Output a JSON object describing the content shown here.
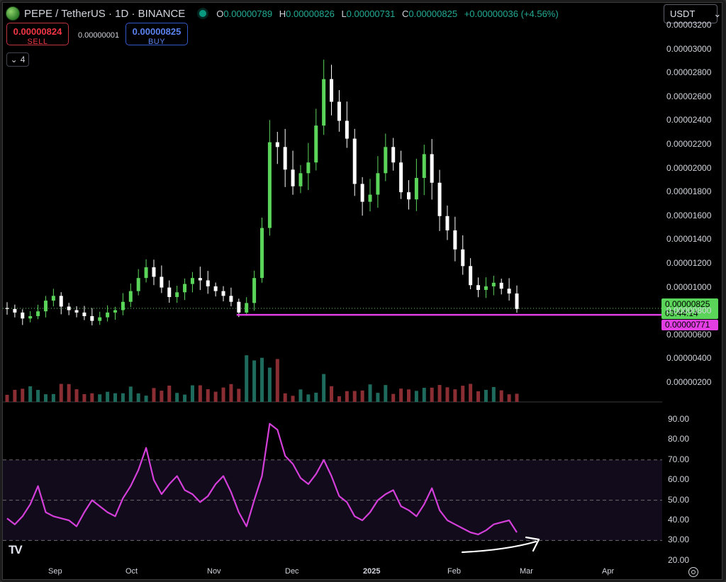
{
  "header": {
    "symbol": "PEPE / TetherUS · 1D · BINANCE",
    "ohlc": {
      "o_label": "O",
      "o": "0.00000789",
      "h_label": "H",
      "h": "0.00000826",
      "l_label": "L",
      "l": "0.00000731",
      "c_label": "C",
      "c": "0.00000825",
      "change": "+0.00000036 (+4.56%)"
    }
  },
  "trade": {
    "sell_price": "0.00000824",
    "sell_label": "SELL",
    "spread": "0.00000001",
    "buy_price": "0.00000825",
    "buy_label": "BUY"
  },
  "indicators_count": "4",
  "currency_select": "USDT",
  "price_axis": [
    "0.00003200",
    "0.00003000",
    "0.00002800",
    "0.00002600",
    "0.00002400",
    "0.00002200",
    "0.00002000",
    "0.00001800",
    "0.00001600",
    "0.00001400",
    "0.00001200",
    "0.00001000",
    "0.00000800",
    "0.00000600",
    "0.00000400",
    "0.00000200"
  ],
  "price_tags": {
    "last_price": "0.00000825",
    "countdown": "03:44:14",
    "line_price": "0.00000771"
  },
  "rsi_axis": [
    "90.00",
    "80.00",
    "70.00",
    "60.00",
    "50.00",
    "40.00",
    "30.00",
    "20.00"
  ],
  "time_axis": [
    "Sep",
    "Oct",
    "Nov",
    "Dec",
    "2025",
    "Feb",
    "Mar",
    "Apr"
  ],
  "colors": {
    "up": "#5bd45a",
    "down": "#ffffff",
    "vol_up": "#1e6b5e",
    "vol_down": "#8a2e33",
    "rsi": "#d43fd9",
    "support": "#e23ee3"
  },
  "icons": [
    "pepe-logo-icon",
    "market-status-icon",
    "chevron-down-icon",
    "tradingview-logo-icon",
    "settings-gear-icon",
    "arrow-annotation-icon"
  ],
  "chart_data": {
    "type": "candlestick",
    "title": "PEPE / TetherUS · 1D · BINANCE",
    "x_ticks": [
      "Sep",
      "Oct",
      "Nov",
      "Dec",
      "2025",
      "Feb",
      "Mar",
      "Apr"
    ],
    "ylim": [
      1.5e-06,
      3.2e-05
    ],
    "close_series_estimate": [
      8.2e-06,
      7.9e-06,
      7.4e-06,
      7.6e-06,
      8e-06,
      8.9e-06,
      9.3e-06,
      8.4e-06,
      8.1e-06,
      7.9e-06,
      7.6e-06,
      7.2e-06,
      7.5e-06,
      7.9e-06,
      8.1e-06,
      8.8e-06,
      9.7e-06,
      1.08e-05,
      1.17e-05,
      1.09e-05,
      1e-05,
      9.2e-06,
      9.6e-06,
      1.03e-05,
      1.08e-05,
      1.06e-05,
      1.01e-05,
      9.7e-06,
      9.3e-06,
      8.8e-06,
      7.9e-06,
      8.7e-06,
      1.08e-05,
      1.5e-05,
      2.22e-05,
      2.18e-05,
      1.99e-05,
      1.85e-05,
      1.96e-05,
      2.05e-05,
      2.36e-05,
      2.75e-05,
      2.56e-05,
      2.4e-05,
      2.25e-05,
      1.87e-05,
      1.72e-05,
      1.78e-05,
      1.96e-05,
      2.18e-05,
      2.05e-05,
      1.8e-05,
      1.74e-05,
      1.92e-05,
      2.12e-05,
      1.88e-05,
      1.6e-05,
      1.48e-05,
      1.32e-05,
      1.18e-05,
      1.02e-05,
      9.8e-06,
      1.01e-05,
      1.04e-05,
      9.9e-06,
      9.5e-06,
      8.2e-06
    ],
    "support_line": 7.71e-06,
    "last": 8.25e-06,
    "rsi": {
      "ylim": [
        20,
        90
      ],
      "bands": [
        70,
        50,
        30
      ],
      "values_estimate": [
        41,
        38,
        42,
        48,
        57,
        44,
        42,
        41,
        40,
        37,
        44,
        50,
        47,
        44,
        42,
        51,
        57,
        65,
        76,
        60,
        53,
        58,
        62,
        55,
        53,
        49,
        52,
        58,
        62,
        54,
        44,
        37,
        50,
        62,
        88,
        85,
        72,
        68,
        61,
        58,
        63,
        70,
        62,
        52,
        49,
        42,
        40,
        44,
        50,
        53,
        55,
        47,
        45,
        42,
        48,
        56,
        45,
        40,
        38,
        36,
        34,
        33,
        35,
        38,
        39,
        40,
        34
      ]
    }
  }
}
